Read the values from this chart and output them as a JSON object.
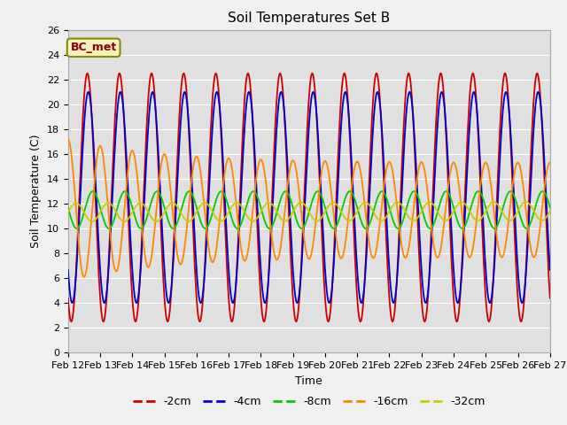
{
  "title": "Soil Temperatures Set B",
  "xlabel": "Time",
  "ylabel": "Soil Temperature (C)",
  "legend_label": "BC_met",
  "ylim": [
    0,
    26
  ],
  "series_colors": {
    "-2cm": "#cc0000",
    "-4cm": "#0000cc",
    "-8cm": "#00cc00",
    "-16cm": "#ff8800",
    "-32cm": "#cccc00"
  },
  "series_labels": [
    "-2cm",
    "-4cm",
    "-8cm",
    "-16cm",
    "-32cm"
  ],
  "background_color": "#e0e0e0",
  "grid_color": "#ffffff",
  "xtick_labels": [
    "Feb 12",
    "Feb 13",
    "Feb 14",
    "Feb 15",
    "Feb 16",
    "Feb 17",
    "Feb 18",
    "Feb 19",
    "Feb 20",
    "Feb 21",
    "Feb 22",
    "Feb 23",
    "Feb 24",
    "Feb 25",
    "Feb 26",
    "Feb 27"
  ]
}
